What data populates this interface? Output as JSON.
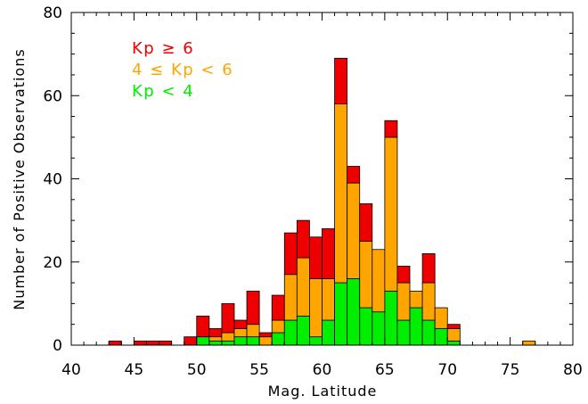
{
  "chart_data": {
    "type": "bar",
    "stacked": true,
    "xlabel": "Mag. Latitude",
    "ylabel": "Number of Positive Observations",
    "xlim": [
      40,
      80
    ],
    "ylim": [
      0,
      80
    ],
    "x_ticks": [
      "40",
      "45",
      "50",
      "55",
      "60",
      "65",
      "70",
      "75",
      "80"
    ],
    "y_ticks": [
      "0",
      "20",
      "40",
      "60",
      "80"
    ],
    "bin_width": 1,
    "bins": [
      43,
      45,
      46,
      47,
      49,
      50,
      51,
      52,
      53,
      54,
      55,
      56,
      57,
      58,
      59,
      60,
      61,
      62,
      63,
      64,
      65,
      66,
      67,
      68,
      69,
      70,
      76
    ],
    "series": [
      {
        "name": "Kp < 4",
        "color": "#00ee00",
        "values": [
          0,
          0,
          0,
          0,
          0,
          2,
          1,
          1,
          2,
          2,
          0,
          3,
          6,
          7,
          2,
          6,
          15,
          16,
          9,
          8,
          13,
          6,
          9,
          6,
          4,
          1,
          0
        ]
      },
      {
        "name": "4 ≤ Kp < 6",
        "color": "#ffa500",
        "values": [
          0,
          0,
          0,
          0,
          0,
          0,
          1,
          2,
          2,
          3,
          2,
          3,
          11,
          14,
          14,
          10,
          43,
          23,
          16,
          15,
          37,
          9,
          4,
          9,
          5,
          3,
          1
        ]
      },
      {
        "name": "Kp ≥ 6",
        "color": "#ee0000",
        "values": [
          1,
          1,
          1,
          1,
          2,
          5,
          2,
          7,
          2,
          8,
          1,
          6,
          10,
          9,
          10,
          12,
          11,
          4,
          9,
          0,
          4,
          4,
          0,
          7,
          0,
          1,
          0
        ]
      }
    ],
    "legend": {
      "position": "top-left",
      "entries": [
        {
          "label": "Kp ≥ 6",
          "color": "#ee0000"
        },
        {
          "label": "4 ≤ Kp < 6",
          "color": "#ffa500"
        },
        {
          "label": "Kp < 4",
          "color": "#00ee00"
        }
      ]
    },
    "grid": false
  }
}
